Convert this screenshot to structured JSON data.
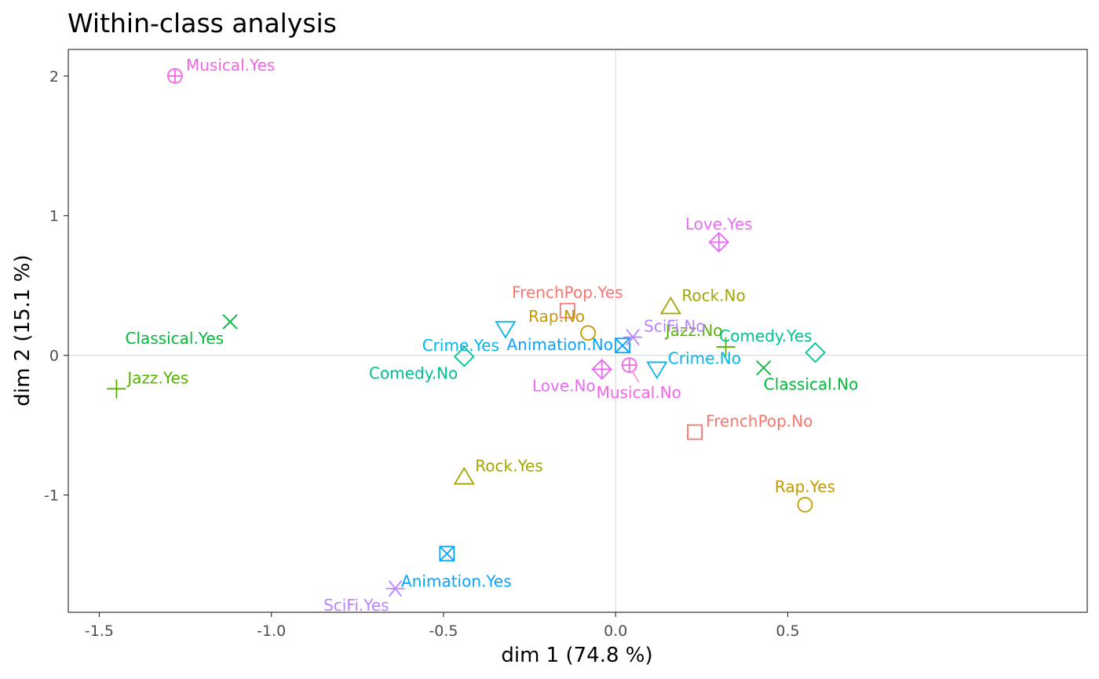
{
  "chart_data": {
    "type": "scatter",
    "title": "Within-class analysis",
    "xlabel": "dim 1 (74.8 %)",
    "ylabel": "dim 2 (15.1 %)",
    "xlim": [
      -1.59,
      1.37
    ],
    "ylim": [
      -1.84,
      2.19
    ],
    "x_ticks": [
      -1.5,
      -1.0,
      -0.5,
      0.0,
      0.5
    ],
    "x_tick_labels": [
      "-1.5",
      "-1.0",
      "-0.5",
      "0.0",
      "0.5"
    ],
    "y_ticks": [
      -1,
      0,
      1,
      2
    ],
    "y_tick_labels": [
      "-1",
      "0",
      "1",
      "2"
    ],
    "reference_lines": {
      "x": 0,
      "y": 0
    },
    "grid": false,
    "points": [
      {
        "label": "Musical.Yes",
        "x": -1.28,
        "y": 2.0,
        "shape": "circle-plus",
        "color": "#F564E3",
        "anchor": "ne"
      },
      {
        "label": "Musical.No",
        "x": 0.04,
        "y": -0.07,
        "shape": "circle-plus",
        "color": "#F564E3",
        "anchor": "s"
      },
      {
        "label": "Classical.Yes",
        "x": -1.12,
        "y": 0.24,
        "shape": "cross-x",
        "color": "#00BA38",
        "anchor": "sw"
      },
      {
        "label": "Classical.No",
        "x": 0.43,
        "y": -0.09,
        "shape": "cross-x",
        "color": "#00BA38",
        "anchor": "se"
      },
      {
        "label": "Jazz.Yes",
        "x": -1.45,
        "y": -0.24,
        "shape": "plus",
        "color": "#53B400",
        "anchor": "ne"
      },
      {
        "label": "Jazz.No",
        "x": 0.32,
        "y": 0.06,
        "shape": "plus",
        "color": "#53B400",
        "anchor": "nw"
      },
      {
        "label": "FrenchPop.Yes",
        "x": -0.14,
        "y": 0.32,
        "shape": "square",
        "color": "#F8766D",
        "anchor": "n"
      },
      {
        "label": "FrenchPop.No",
        "x": 0.23,
        "y": -0.55,
        "shape": "square",
        "color": "#F8766D",
        "anchor": "ne"
      },
      {
        "label": "Rap.No",
        "x": -0.08,
        "y": 0.16,
        "shape": "circle",
        "color": "#C49A00",
        "anchor": "nw"
      },
      {
        "label": "Rap.Yes",
        "x": 0.55,
        "y": -1.07,
        "shape": "circle",
        "color": "#C49A00",
        "anchor": "n"
      },
      {
        "label": "Rock.No",
        "x": 0.16,
        "y": 0.35,
        "shape": "triangle-up",
        "color": "#A58AFF",
        "anchor": "ne"
      },
      {
        "label": "Rock.Yes",
        "x": -0.44,
        "y": -0.87,
        "shape": "triangle-up",
        "color": "#A58AFF",
        "anchor": "ne"
      },
      {
        "label": "Crime.Yes",
        "x": -0.32,
        "y": 0.19,
        "shape": "triangle-down",
        "color": "#00B6EB",
        "anchor": "sw"
      },
      {
        "label": "Crime.No",
        "x": 0.12,
        "y": -0.1,
        "shape": "triangle-down",
        "color": "#00B6EB",
        "anchor": "ne"
      },
      {
        "label": "Comedy.Yes",
        "x": 0.58,
        "y": 0.02,
        "shape": "diamond",
        "color": "#00C094",
        "anchor": "nw"
      },
      {
        "label": "Comedy.No",
        "x": -0.44,
        "y": -0.01,
        "shape": "diamond",
        "color": "#00C094",
        "anchor": "sw"
      },
      {
        "label": "Animation.No",
        "x": 0.02,
        "y": 0.07,
        "shape": "square-x",
        "color": "#06A4FF",
        "anchor": "w"
      },
      {
        "label": "Animation.Yes",
        "x": -0.49,
        "y": -1.42,
        "shape": "square-x",
        "color": "#06A4FF",
        "anchor": "s"
      },
      {
        "label": "SciFi.No",
        "x": 0.05,
        "y": 0.13,
        "shape": "asterisk",
        "color": "#B79F00",
        "anchor": "ne"
      },
      {
        "label": "SciFi.Yes",
        "x": -0.64,
        "y": -1.67,
        "shape": "asterisk",
        "color": "#B79F00",
        "anchor": "sw"
      },
      {
        "label": "Love.Yes",
        "x": 0.3,
        "y": 0.81,
        "shape": "diamond-plus",
        "color": "#E76BF3",
        "anchor": "n"
      },
      {
        "label": "Love.No",
        "x": -0.04,
        "y": -0.1,
        "shape": "diamond-plus",
        "color": "#E76BF3",
        "anchor": "sw"
      }
    ]
  },
  "colors": {
    "panel_border": "#333333",
    "reference_line": "#d3d3d3",
    "Musical": "#F564E3",
    "Classical": "#00BA38",
    "Jazz": "#53B400",
    "FrenchPop": "#F8766D",
    "Rap": "#C49A00",
    "Rock": "#A3A500",
    "Crime": "#00B6EB",
    "Comedy": "#00C094",
    "Animation": "#06A4FF",
    "SciFi": "#B983FF",
    "Love": "#E76BF3"
  }
}
